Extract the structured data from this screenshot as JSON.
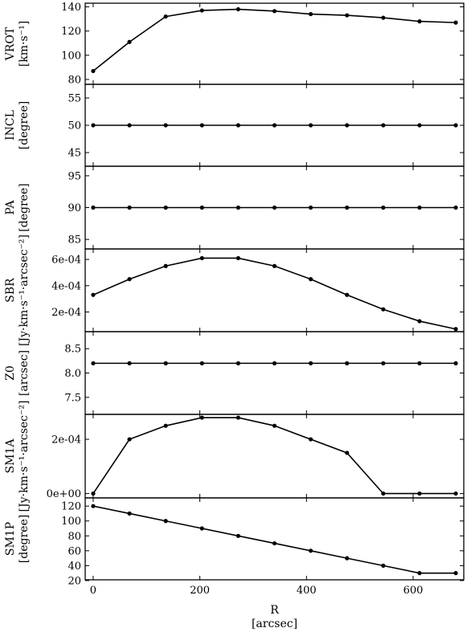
{
  "chart_data": {
    "type": "line",
    "shared_x": {
      "values": [
        0,
        68,
        136,
        204,
        272,
        340,
        408,
        476,
        544,
        612,
        680
      ],
      "xlim": [
        -15,
        695
      ],
      "ticks": [
        0,
        200,
        400,
        600
      ],
      "tick_labels": [
        "0",
        "200",
        "400",
        "600"
      ],
      "xlabel": "R",
      "xunit": "[arcsec]"
    },
    "panels": [
      {
        "name": "VROT",
        "ylabel": "VROT",
        "yunit": "[km·s⁻¹]",
        "ylim": [
          76,
          143
        ],
        "ticks": [
          80,
          100,
          120,
          140
        ],
        "tick_labels": [
          "80",
          "100",
          "120",
          "140"
        ],
        "values": [
          87,
          111,
          132,
          137,
          138,
          136.5,
          134,
          133,
          131,
          128,
          127
        ]
      },
      {
        "name": "INCL",
        "ylabel": "INCL",
        "yunit": "[degree]",
        "ylim": [
          42.5,
          57.5
        ],
        "ticks": [
          45,
          50,
          55
        ],
        "tick_labels": [
          "45",
          "50",
          "55"
        ],
        "values": [
          50,
          50,
          50,
          50,
          50,
          50,
          50,
          50,
          50,
          50,
          50
        ]
      },
      {
        "name": "PA",
        "ylabel": "PA",
        "yunit": "[degree]",
        "ylim": [
          83.5,
          96.5
        ],
        "ticks": [
          85,
          90,
          95
        ],
        "tick_labels": [
          "85",
          "90",
          "95"
        ],
        "values": [
          90,
          90,
          90,
          90,
          90,
          90,
          90,
          90,
          90,
          90,
          90
        ]
      },
      {
        "name": "SBR",
        "ylabel": "SBR",
        "yunit": "[Jy·km·s⁻¹·arcsec⁻²]",
        "ylim": [
          5e-05,
          0.00068
        ],
        "ticks": [
          0.0002,
          0.0004,
          0.0006
        ],
        "tick_labels": [
          "2e-04",
          "4e-04",
          "6e-04"
        ],
        "values": [
          0.00033,
          0.00045,
          0.00055,
          0.00061,
          0.00061,
          0.00055,
          0.00045,
          0.00033,
          0.00022,
          0.00013,
          7e-05
        ]
      },
      {
        "name": "Z0",
        "ylabel": "Z0",
        "yunit": "[arcsec]",
        "ylim": [
          7.15,
          8.85
        ],
        "ticks": [
          7.5,
          8.0,
          8.5
        ],
        "tick_labels": [
          "7.5",
          "8.0",
          "8.5"
        ],
        "values": [
          8.2,
          8.2,
          8.2,
          8.2,
          8.2,
          8.2,
          8.2,
          8.2,
          8.2,
          8.2,
          8.2
        ]
      },
      {
        "name": "SM1A",
        "ylabel": "SM1A",
        "yunit": "[Jy·km·s⁻¹·arcsec⁻²]",
        "ylim": [
          -1.6e-05,
          0.000292
        ],
        "ticks": [
          0,
          0.0002
        ],
        "tick_labels": [
          "0e+00",
          "2e-04"
        ],
        "values": [
          0,
          0.0002,
          0.00025,
          0.00028,
          0.00028,
          0.00025,
          0.0002,
          0.00015,
          0,
          0,
          0
        ]
      },
      {
        "name": "SM1P",
        "ylabel": "SM1P",
        "yunit": "[degree]",
        "ylim": [
          21,
          131
        ],
        "ticks": [
          20,
          40,
          60,
          80,
          100,
          120
        ],
        "tick_labels": [
          "20",
          "40",
          "60",
          "80",
          "100",
          "120"
        ],
        "values": [
          120,
          110,
          100,
          90,
          80,
          70,
          60,
          50,
          40,
          30,
          30
        ]
      }
    ],
    "grid": false,
    "marker": "filled-circle",
    "line_color": "#000000"
  }
}
